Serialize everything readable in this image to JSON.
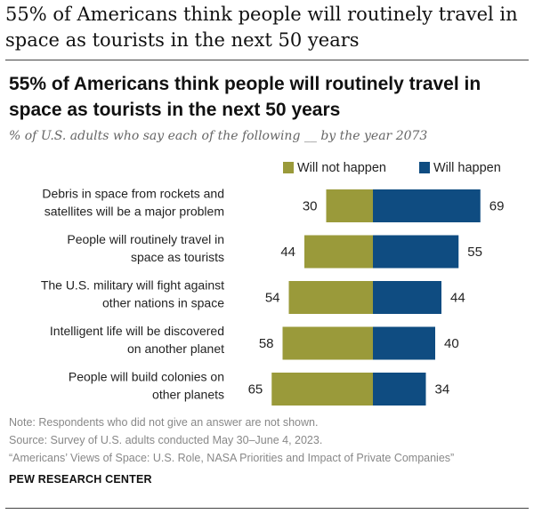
{
  "page": {
    "heading": "55% of Americans think people will routinely travel in space as tourists in the next 50 years"
  },
  "chart_data": {
    "type": "bar",
    "orientation": "horizontal-diverging",
    "title": "55% of Americans think people will routinely travel in space as tourists in the next 50 years",
    "subtitle": "% of U.S. adults who say each of the following __ by the year 2073",
    "legend_position": "top-right",
    "categories": [
      [
        "Debris in space from rockets and",
        "satellites will be a major problem"
      ],
      [
        "People will routinely travel in",
        "space as tourists"
      ],
      [
        "The U.S. military will fight against",
        "other nations in space"
      ],
      [
        "Intelligent life will be discovered",
        "on another planet"
      ],
      [
        "People will build colonies on",
        "other planets"
      ]
    ],
    "series": [
      {
        "name": "Will not happen",
        "color": "#9a9a3a",
        "values": [
          30,
          44,
          54,
          58,
          65
        ]
      },
      {
        "name": "Will happen",
        "color": "#0f4c81",
        "values": [
          69,
          55,
          44,
          40,
          34
        ]
      }
    ]
  },
  "notes": {
    "note": "Note: Respondents who did not give an answer are not shown.",
    "source": "Source: Survey of U.S. adults conducted May 30–June 4, 2023.",
    "report": "“Americans’ Views of Space: U.S. Role, NASA Priorities and Impact of Private Companies”"
  },
  "brand": "PEW RESEARCH CENTER"
}
